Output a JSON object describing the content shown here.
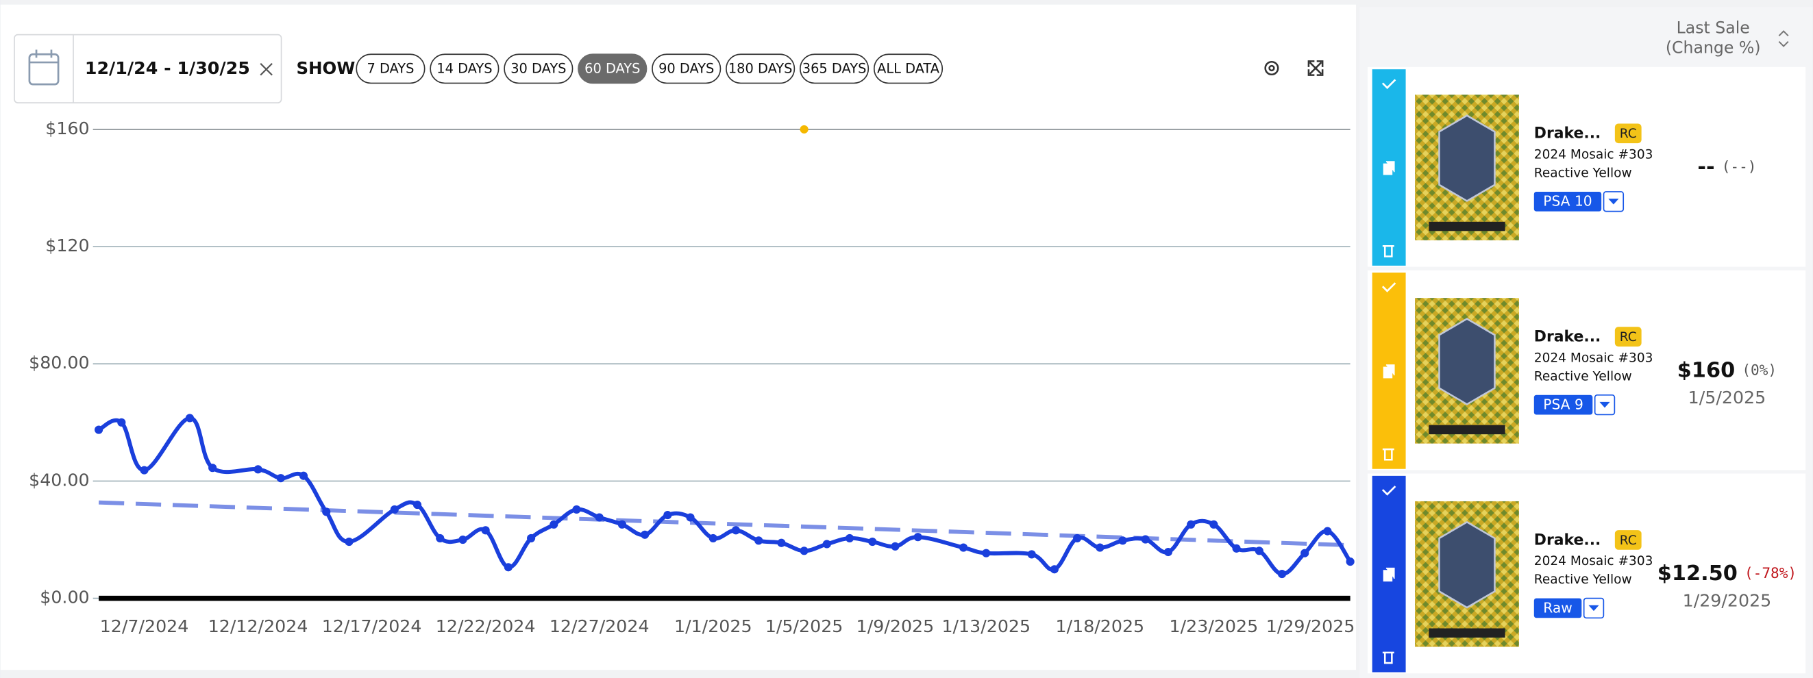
{
  "toolbar": {
    "date_range": "12/1/24 - 1/30/25",
    "show_label": "SHOW",
    "ranges": [
      "7 DAYS",
      "14 DAYS",
      "30 DAYS",
      "60 DAYS",
      "90 DAYS",
      "180 DAYS",
      "365 DAYS",
      "ALL DATA"
    ],
    "active": 3
  },
  "chart_data": {
    "type": "line",
    "series": [
      {
        "name": "Raw",
        "color": "#1a3fdc",
        "x": [
          "12/5/2024",
          "12/6/2024",
          "12/7/2024",
          "12/9/2024",
          "12/10/2024",
          "12/12/2024",
          "12/13/2024",
          "12/14/2024",
          "12/15/2024",
          "12/16/2024",
          "12/18/2024",
          "12/19/2024",
          "12/20/2024",
          "12/21/2024",
          "12/22/2024",
          "12/23/2024",
          "12/24/2024",
          "12/25/2024",
          "12/26/2024",
          "12/27/2024",
          "12/28/2024",
          "12/29/2024",
          "12/30/2024",
          "12/31/2024",
          "1/1/2025",
          "1/2/2025",
          "1/3/2025",
          "1/4/2025",
          "1/5/2025",
          "1/6/2025",
          "1/7/2025",
          "1/8/2025",
          "1/9/2025",
          "1/10/2025",
          "1/12/2025",
          "1/13/2025",
          "1/15/2025",
          "1/16/2025",
          "1/17/2025",
          "1/18/2025",
          "1/19/2025",
          "1/20/2025",
          "1/21/2025",
          "1/22/2025",
          "1/23/2025",
          "1/24/2025",
          "1/25/2025",
          "1/26/2025",
          "1/27/2025",
          "1/28/2025",
          "1/29/2025"
        ],
        "values": [
          57.5,
          60,
          43.7,
          61.5,
          44.5,
          44,
          41,
          41.8,
          29.5,
          19.3,
          30.3,
          31.9,
          20.5,
          20,
          23.2,
          10.6,
          20.5,
          25.2,
          30.3,
          27.6,
          25.2,
          21.7,
          28.4,
          27.6,
          20.5,
          23.2,
          19.7,
          18.9,
          16.2,
          18.5,
          20.5,
          19.3,
          17.7,
          20.9,
          17.3,
          15.4,
          15,
          9.9,
          20.5,
          17.3,
          19.7,
          20.1,
          15.8,
          25.2,
          25.2,
          17,
          16.2,
          8.3,
          15.4,
          22.9,
          12.5
        ]
      },
      {
        "name": "PSA 9",
        "color": "#f5b800",
        "x": [
          "1/5/2025"
        ],
        "values": [
          160
        ]
      }
    ],
    "trend": {
      "x": [
        "12/5/2024",
        "1/29/2025"
      ],
      "values": [
        32.7,
        18.1
      ],
      "color": "#7b8fe6"
    },
    "xlim": [
      "12/5/2024",
      "1/29/2025"
    ],
    "xticks": [
      "12/7/2024",
      "12/12/2024",
      "12/17/2024",
      "12/22/2024",
      "12/27/2024",
      "1/1/2025",
      "1/5/2025",
      "1/9/2025",
      "1/13/2025",
      "1/18/2025",
      "1/23/2025",
      "1/29/2025"
    ],
    "ylim": [
      0,
      160
    ],
    "yticks": [
      {
        "value": 0,
        "label": "$0.00"
      },
      {
        "value": 40,
        "label": "$40.00"
      },
      {
        "value": 80,
        "label": "$80.00"
      },
      {
        "value": 120,
        "label": "$120"
      },
      {
        "value": 160,
        "label": "$160"
      }
    ],
    "grid": true
  },
  "sidebar": {
    "header": [
      "Last Sale",
      "(Change %)"
    ],
    "cards": [
      {
        "color": "#1ab7ea",
        "name": "Drake...",
        "badge": "RC",
        "set": "2024 Mosaic #303",
        "variant": "Reactive Yellow",
        "grade": "PSA 10",
        "price": "--",
        "change": "(--)",
        "change_color": "#555555"
      },
      {
        "color": "#fbbf0a",
        "name": "Drake...",
        "badge": "RC",
        "set": "2024 Mosaic #303",
        "variant": "Reactive Yellow",
        "grade": "PSA 9",
        "price": "$160",
        "change": "(0%)",
        "change_color": "#555555",
        "date": "1/5/2025"
      },
      {
        "color": "#1746e0",
        "name": "Drake...",
        "badge": "RC",
        "set": "2024 Mosaic #303",
        "variant": "Reactive Yellow",
        "grade": "Raw",
        "price": "$12.50",
        "change": "(-78%)",
        "change_color": "#c0151b",
        "date": "1/29/2025"
      }
    ]
  }
}
